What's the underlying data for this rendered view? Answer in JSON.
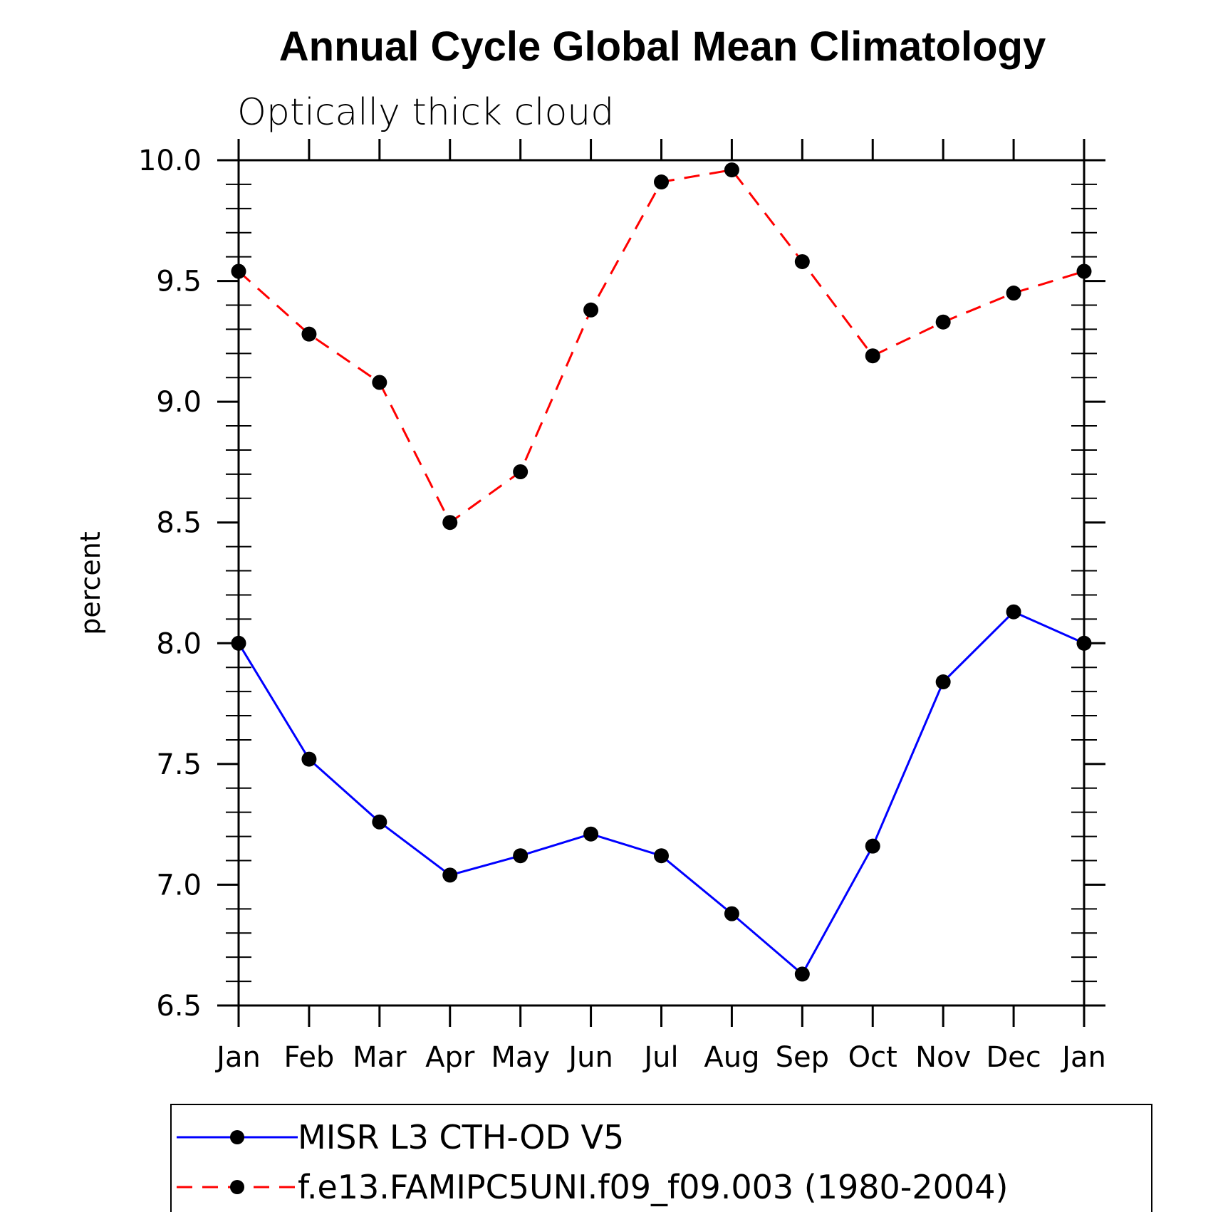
{
  "chart_data": {
    "type": "line",
    "title": "Annual Cycle Global Mean Climatology",
    "subtitle": "Optically thick cloud",
    "xlabel": "",
    "ylabel": "percent",
    "categories": [
      "Jan",
      "Feb",
      "Mar",
      "Apr",
      "May",
      "Jun",
      "Jul",
      "Aug",
      "Sep",
      "Oct",
      "Nov",
      "Dec",
      "Jan"
    ],
    "ylim": [
      6.5,
      10.0
    ],
    "yticks": [
      "6.5",
      "7.0",
      "7.5",
      "8.0",
      "8.5",
      "9.0",
      "9.5",
      "10.0"
    ],
    "series": [
      {
        "name": "MISR L3 CTH-OD V5",
        "color": "#0000ff",
        "dash": "solid",
        "values": [
          8.0,
          7.52,
          7.26,
          7.04,
          7.12,
          7.21,
          7.12,
          6.88,
          6.63,
          7.16,
          7.84,
          8.13,
          8.0
        ]
      },
      {
        "name": "f.e13.FAMIPC5UNI.f09_f09.003 (1980-2004)",
        "color": "#ff0000",
        "dash": "dashed",
        "values": [
          9.54,
          9.28,
          9.08,
          8.5,
          8.71,
          9.38,
          9.91,
          9.96,
          9.58,
          9.19,
          9.33,
          9.45,
          9.54
        ]
      }
    ],
    "marker_color": "#000000",
    "grid": false,
    "legend_position": "bottom"
  }
}
